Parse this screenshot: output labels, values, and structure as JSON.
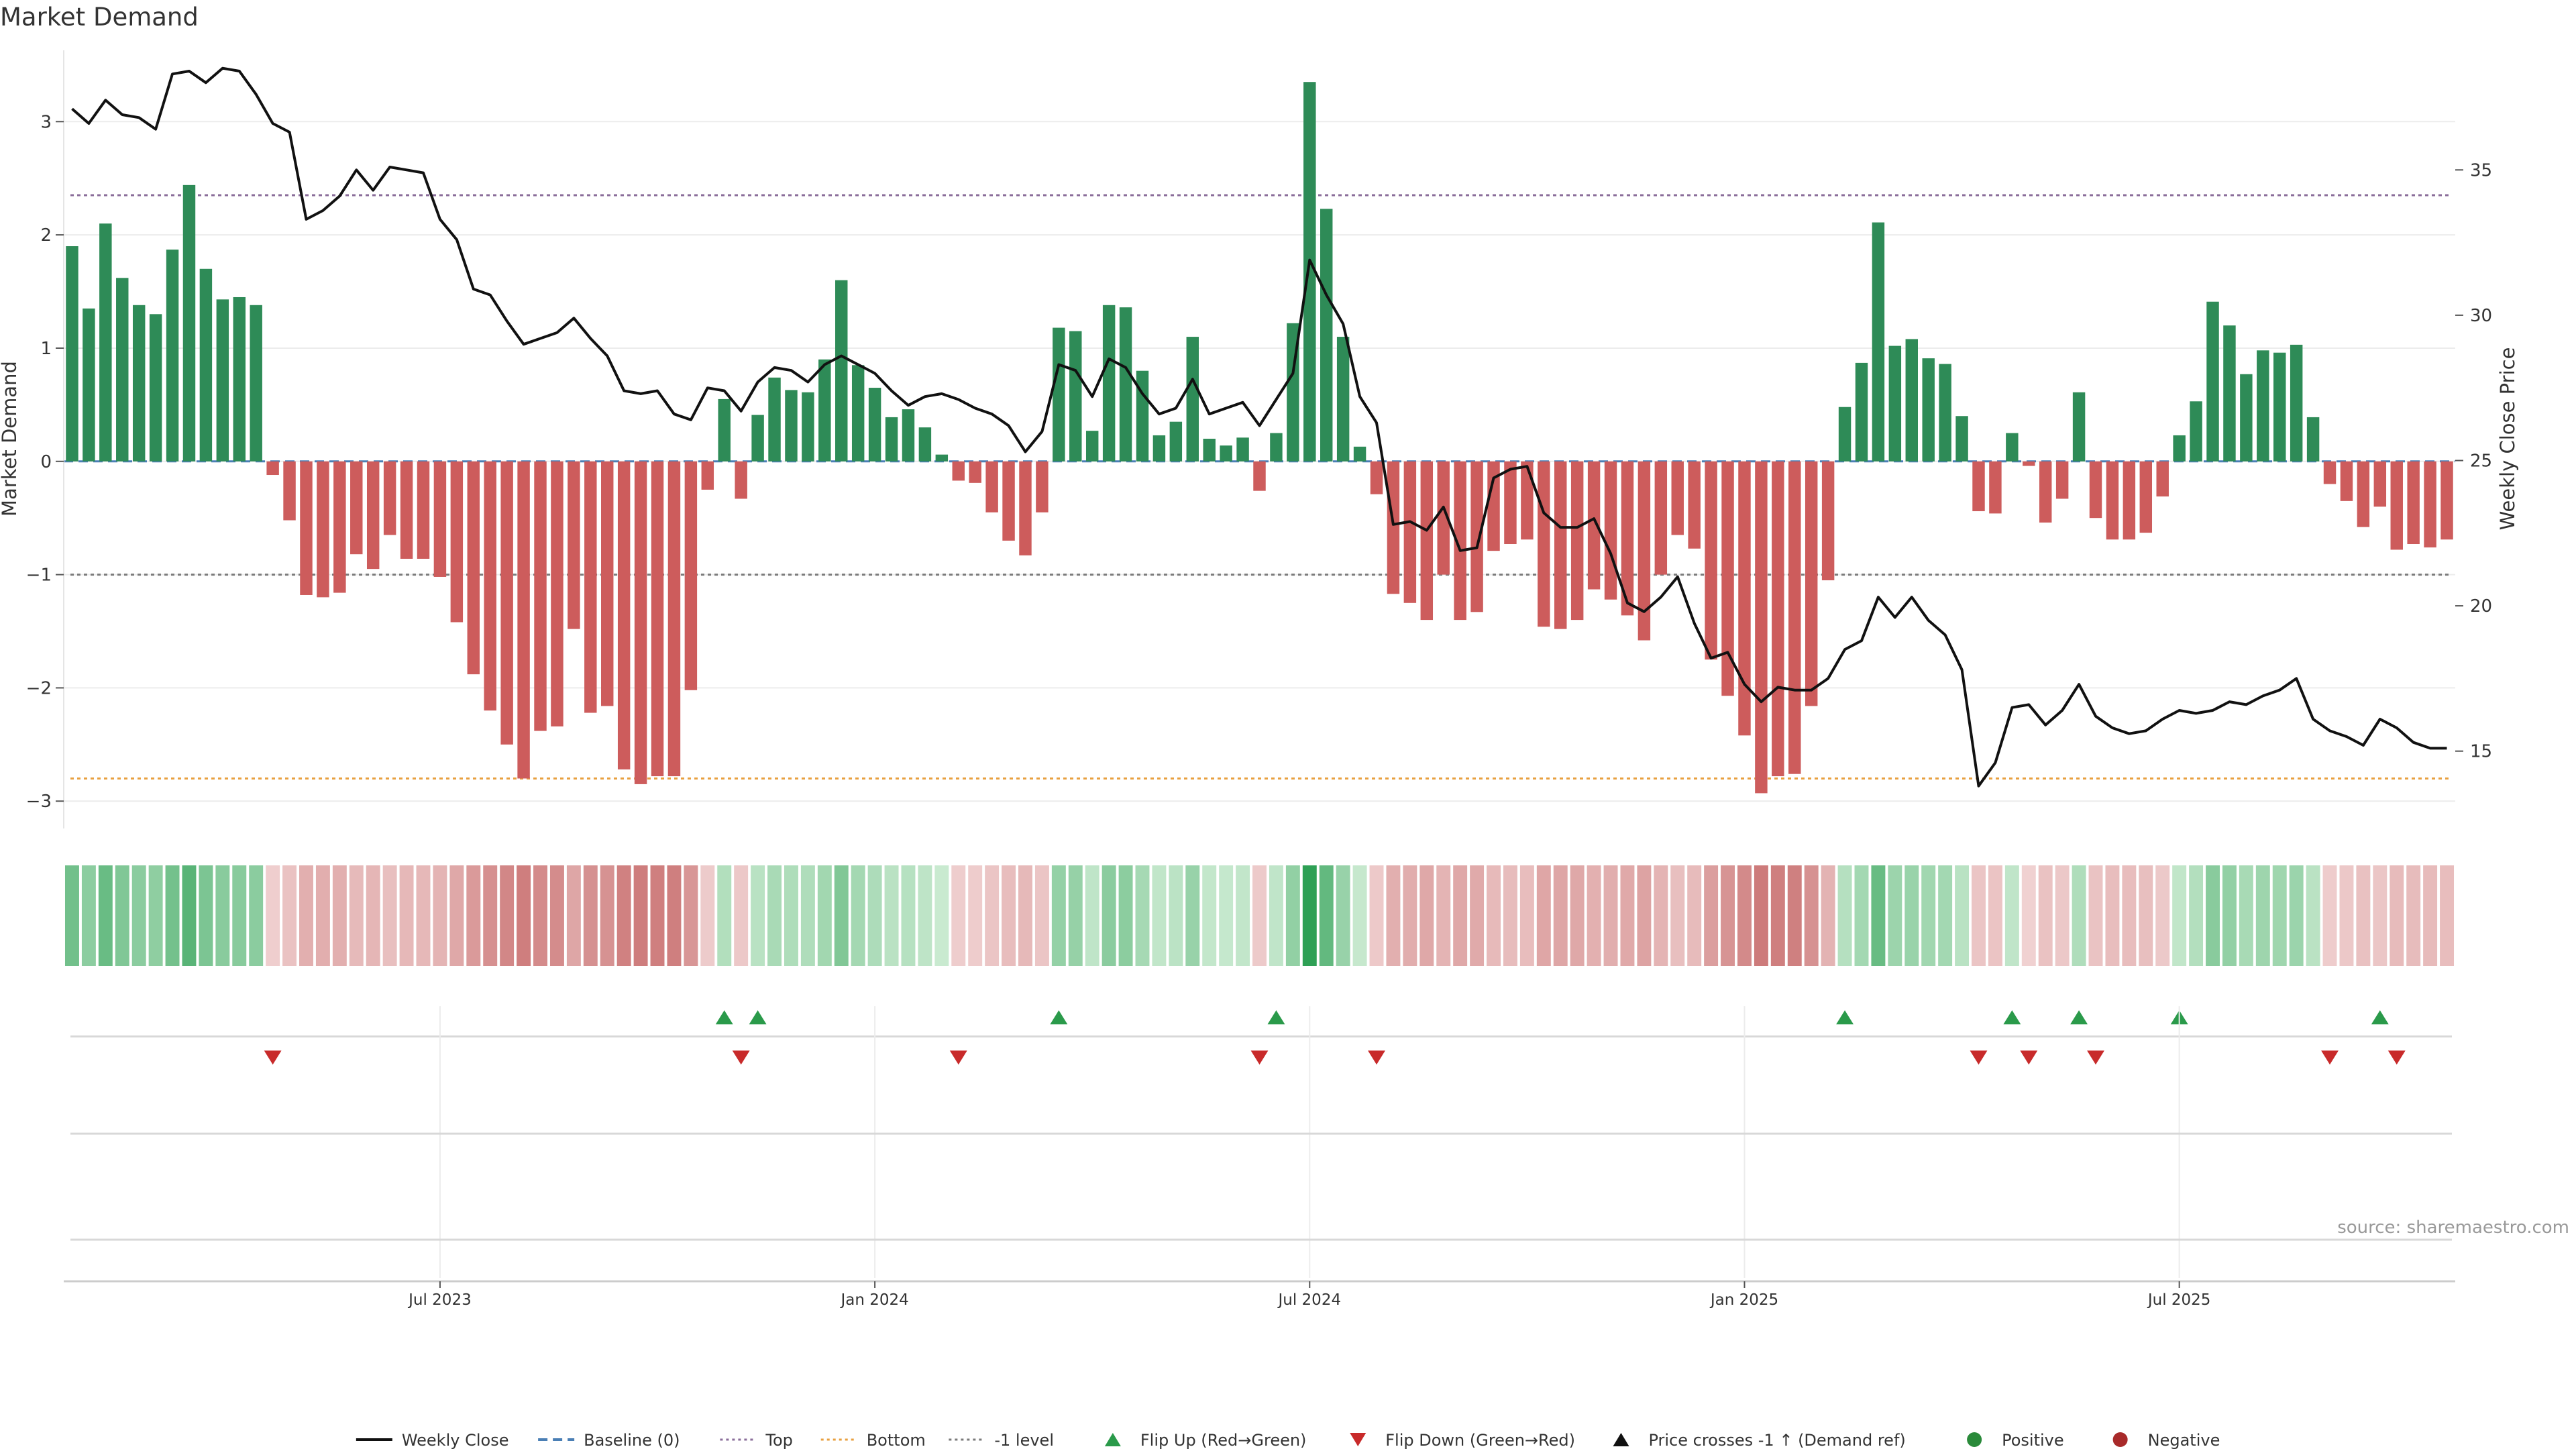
{
  "title": "Market Demand",
  "source": "source: sharemaestro.com",
  "chart_data": {
    "type": "bar",
    "title": "Market Demand",
    "ylabel": "Market Demand",
    "y2label": "Weekly Close Price",
    "ylim": [
      -3.2,
      3.6
    ],
    "y2lim": [
      12.5,
      39.0
    ],
    "yticks": [
      3,
      2,
      1,
      0,
      -1,
      -2,
      -3
    ],
    "y2ticks": [
      35,
      30,
      25,
      20,
      15
    ],
    "ytick_labels": [
      "3",
      "2",
      "1",
      "0",
      "−1",
      "−2",
      "−3"
    ],
    "y2tick_labels": [
      "35",
      "30",
      "25",
      "20",
      "15"
    ],
    "x_tick_labels": [
      {
        "index": 22,
        "label": "Jul 2023"
      },
      {
        "index": 48,
        "label": "Jan 2024"
      },
      {
        "index": 74,
        "label": "Jul 2024"
      },
      {
        "index": 100,
        "label": "Jan 2025"
      },
      {
        "index": 126,
        "label": "Jul 2025"
      }
    ],
    "reference_lines": {
      "top": 2.35,
      "bottom": -2.8,
      "minus_one": -1.0,
      "baseline": 0
    },
    "demand": [
      1.9,
      1.35,
      2.1,
      1.62,
      1.38,
      1.3,
      1.87,
      2.44,
      1.7,
      1.43,
      1.45,
      1.38,
      -0.12,
      -0.52,
      -1.18,
      -1.2,
      -1.16,
      -0.82,
      -0.95,
      -0.65,
      -0.86,
      -0.86,
      -1.02,
      -1.42,
      -1.88,
      -2.2,
      -2.5,
      -2.8,
      -2.38,
      -2.34,
      -1.48,
      -2.22,
      -2.16,
      -2.72,
      -2.85,
      -2.78,
      -2.78,
      -2.02,
      -0.25,
      0.55,
      -0.33,
      0.41,
      0.74,
      0.63,
      0.61,
      0.9,
      1.6,
      0.85,
      0.65,
      0.39,
      0.46,
      0.3,
      0.06,
      -0.17,
      -0.19,
      -0.45,
      -0.7,
      -0.83,
      -0.45,
      1.18,
      1.15,
      0.27,
      1.38,
      1.36,
      0.8,
      0.23,
      0.35,
      1.1,
      0.2,
      0.14,
      0.21,
      -0.26,
      0.25,
      1.22,
      3.35,
      2.23,
      1.1,
      0.13,
      -0.29,
      -1.17,
      -1.25,
      -1.4,
      -1.0,
      -1.4,
      -1.33,
      -0.79,
      -0.73,
      -0.69,
      -1.46,
      -1.48,
      -1.4,
      -1.13,
      -1.22,
      -1.36,
      -1.58,
      -1.0,
      -0.65,
      -0.77,
      -1.75,
      -2.07,
      -2.42,
      -2.93,
      -2.78,
      -2.76,
      -2.16,
      -1.05,
      0.48,
      0.87,
      2.11,
      1.02,
      1.08,
      0.91,
      0.86,
      0.4,
      -0.44,
      -0.46,
      0.25,
      -0.04,
      -0.54,
      -0.33,
      0.61,
      -0.5,
      -0.69,
      -0.69,
      -0.63,
      -0.31,
      0.23,
      0.53,
      1.41,
      1.2,
      0.77,
      0.98,
      0.96,
      1.03,
      0.39,
      -0.2,
      -0.35,
      -0.58,
      -0.4,
      -0.78,
      -0.73,
      -0.76,
      -0.69
    ],
    "weekly_close": [
      37.1,
      36.6,
      37.4,
      36.9,
      36.8,
      36.4,
      38.3,
      38.4,
      38.0,
      38.5,
      38.4,
      37.6,
      36.6,
      36.3,
      33.3,
      33.6,
      34.1,
      35.0,
      34.3,
      35.1,
      35.0,
      34.9,
      33.3,
      32.6,
      30.9,
      30.7,
      29.8,
      29.0,
      29.2,
      29.4,
      29.9,
      29.2,
      28.6,
      27.4,
      27.3,
      27.4,
      26.6,
      26.4,
      27.5,
      27.4,
      26.7,
      27.7,
      28.2,
      28.1,
      27.7,
      28.3,
      28.6,
      28.3,
      28.0,
      27.4,
      26.9,
      27.2,
      27.3,
      27.1,
      26.8,
      26.6,
      26.2,
      25.3,
      26.0,
      28.3,
      28.1,
      27.2,
      28.5,
      28.2,
      27.3,
      26.6,
      26.8,
      27.8,
      26.6,
      26.8,
      27.0,
      26.2,
      27.1,
      28.0,
      31.9,
      30.7,
      29.7,
      27.2,
      26.3,
      22.8,
      22.9,
      22.6,
      23.4,
      21.9,
      22.0,
      24.4,
      24.7,
      24.8,
      23.2,
      22.7,
      22.7,
      23.0,
      21.8,
      20.1,
      19.8,
      20.3,
      21.0,
      19.4,
      18.2,
      18.4,
      17.3,
      16.7,
      17.2,
      17.1,
      17.1,
      17.5,
      18.5,
      18.8,
      20.3,
      19.6,
      20.3,
      19.5,
      19.0,
      17.8,
      13.8,
      14.6,
      16.5,
      16.6,
      15.9,
      16.4,
      17.3,
      16.2,
      15.8,
      15.6,
      15.7,
      16.1,
      16.4,
      16.3,
      16.4,
      16.7,
      16.6,
      16.9,
      17.1,
      17.5,
      16.1,
      15.7,
      15.5,
      15.2,
      16.1,
      15.8,
      15.3,
      15.1,
      15.1
    ],
    "flip_up": [
      39,
      41,
      59,
      72,
      106,
      116,
      120,
      126,
      138
    ],
    "flip_down": [
      12,
      40,
      53,
      71,
      78,
      114,
      117,
      121,
      135,
      139
    ],
    "legend_position": "bottom-center"
  },
  "legend": [
    {
      "label": "Weekly Close",
      "icon": "line-solid",
      "color": "#111111"
    },
    {
      "label": "Baseline (0)",
      "icon": "line-dashed",
      "color": "#4a7fb5"
    },
    {
      "label": "Top",
      "icon": "line-dotted",
      "color": "#8a6d9a"
    },
    {
      "label": "Bottom",
      "icon": "line-dotted",
      "color": "#e8a040"
    },
    {
      "label": "-1 level",
      "icon": "line-dotted",
      "color": "#7a7a7a"
    },
    {
      "label": "Flip Up (Red→Green)",
      "icon": "triangle-up",
      "color": "#2a9a4a"
    },
    {
      "label": "Flip Down (Green→Red)",
      "icon": "triangle-down",
      "color": "#c82a2a"
    },
    {
      "label": "Price crosses -1 ↑ (Demand ref)",
      "icon": "triangle-up",
      "color": "#111111"
    },
    {
      "label": "Positive",
      "icon": "circle",
      "color": "#2a8a3a"
    },
    {
      "label": "Negative",
      "icon": "circle",
      "color": "#a82a2a"
    }
  ],
  "colors": {
    "positive_bar": "#2e8b57",
    "negative_bar": "#cd5c5c",
    "price_line": "#111111",
    "flip_up": "#2a9a4a",
    "flip_down": "#c82a2a"
  }
}
